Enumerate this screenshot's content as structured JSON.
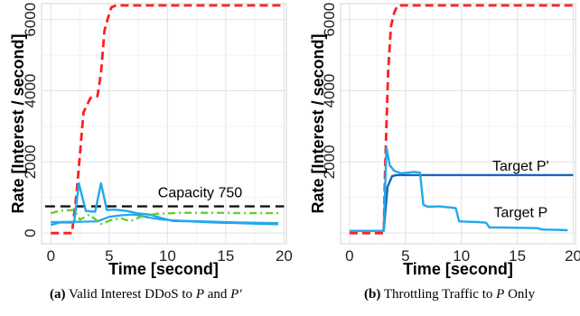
{
  "chart_data": [
    {
      "type": "line",
      "xlabel": "Time [second]",
      "ylabel": "Rate [Interest / second]",
      "xlim": [
        -0.8,
        20.2
      ],
      "ylim": [
        -300,
        6450
      ],
      "xticks": [
        0,
        5,
        10,
        15,
        20
      ],
      "yticks": [
        0,
        2000,
        4000,
        6000
      ],
      "grid": true,
      "legend": "none",
      "colors": {
        "red": "#ff1f1f",
        "cyan": "#22a8ea",
        "green": "#66cc33",
        "black": "#111111"
      },
      "annotations": [
        {
          "text": "Capacity 750",
          "x": 12.8,
          "y": 1010
        }
      ],
      "series": [
        {
          "style": "red-dashed",
          "color": "#ff1f1f",
          "x": [
            0,
            1.8,
            2.2,
            2.8,
            3.4,
            4.0,
            4.3,
            4.6,
            4.9,
            5.2,
            5.6,
            20
          ],
          "y": [
            0,
            0,
            1100,
            3400,
            3800,
            3850,
            4500,
            5700,
            6050,
            6350,
            6400,
            6400
          ]
        },
        {
          "style": "black-dashed",
          "color": "#111111",
          "x": [
            -0.5,
            20
          ],
          "y": [
            750,
            750
          ]
        },
        {
          "style": "cyan-solid",
          "color": "#22a8ea",
          "x": [
            0,
            0.8,
            2.0,
            2.4,
            3.0,
            3.8,
            4.3,
            4.8,
            5.5,
            6.5,
            7.5,
            8.5,
            9.5,
            10.5,
            12,
            14,
            16,
            18,
            19.5
          ],
          "y": [
            230,
            300,
            300,
            1400,
            620,
            600,
            1400,
            650,
            660,
            620,
            550,
            520,
            420,
            340,
            330,
            300,
            280,
            260,
            250
          ]
        },
        {
          "style": "cyan-solid-2",
          "color": "#22a8ea",
          "x": [
            0,
            2.5,
            4.0,
            5.0,
            6.0,
            7.0,
            7.5,
            8.5,
            9.5,
            11,
            13,
            16,
            19.5
          ],
          "y": [
            310,
            320,
            330,
            460,
            500,
            520,
            500,
            430,
            380,
            350,
            330,
            300,
            280
          ]
        },
        {
          "style": "green-dashdot",
          "color": "#66cc33",
          "x": [
            0,
            0.8,
            2.0,
            2.5,
            3.3,
            4.3,
            5.2,
            6.0,
            6.8,
            7.8,
            9.0,
            11,
            14,
            17,
            19.5
          ],
          "y": [
            560,
            630,
            650,
            380,
            520,
            260,
            370,
            420,
            330,
            470,
            540,
            570,
            570,
            560,
            560
          ]
        }
      ]
    },
    {
      "type": "line",
      "xlabel": "Time [second]",
      "ylabel": "Rate [Interest / second]",
      "xlim": [
        -0.8,
        20.2
      ],
      "ylim": [
        -300,
        6450
      ],
      "xticks": [
        0,
        5,
        10,
        15,
        20
      ],
      "yticks": [
        2000,
        4000,
        6000
      ],
      "grid": true,
      "legend": "none",
      "colors": {
        "red": "#ff1f1f",
        "cyan": "#22a8ea",
        "darkblue": "#1565c0"
      },
      "annotations": [
        {
          "text": "Target P'",
          "x": 15.3,
          "y": 1750
        },
        {
          "text": "Target P",
          "x": 15.3,
          "y": 450
        }
      ],
      "series": [
        {
          "style": "red-dashed",
          "color": "#ff1f1f",
          "x": [
            0,
            3.05,
            3.2,
            3.45,
            3.7,
            4.0,
            4.3,
            20
          ],
          "y": [
            0,
            0,
            2000,
            4500,
            5800,
            6200,
            6400,
            6400
          ]
        },
        {
          "style": "darkblue-solid",
          "color": "#1565c0",
          "x": [
            0,
            3.05,
            3.4,
            3.8,
            4.2,
            20
          ],
          "y": [
            60,
            60,
            1300,
            1600,
            1630,
            1630
          ]
        },
        {
          "style": "cyan-solid",
          "color": "#22a8ea",
          "x": [
            0,
            3.05,
            3.3,
            3.6,
            4.0,
            4.6,
            5.2,
            5.8,
            6.3,
            6.6,
            7.0,
            8.0,
            9.0,
            9.5,
            9.8,
            10.5,
            11.5,
            12.2,
            12.5,
            13.5,
            15,
            16.8,
            17.2,
            18.5,
            19.5
          ],
          "y": [
            60,
            60,
            2400,
            1900,
            1750,
            1680,
            1700,
            1720,
            1700,
            800,
            740,
            750,
            720,
            700,
            330,
            320,
            310,
            290,
            160,
            160,
            150,
            140,
            100,
            90,
            80
          ]
        }
      ]
    }
  ],
  "captions": [
    {
      "tag": "(a)",
      "text_pre": "Valid Interest DDoS to ",
      "var1": "P",
      "text_mid": " and ",
      "var2": "P'"
    },
    {
      "tag": "(b)",
      "text_pre": "Throttling Traffic to ",
      "var1": "P",
      "text_post": " Only"
    }
  ]
}
